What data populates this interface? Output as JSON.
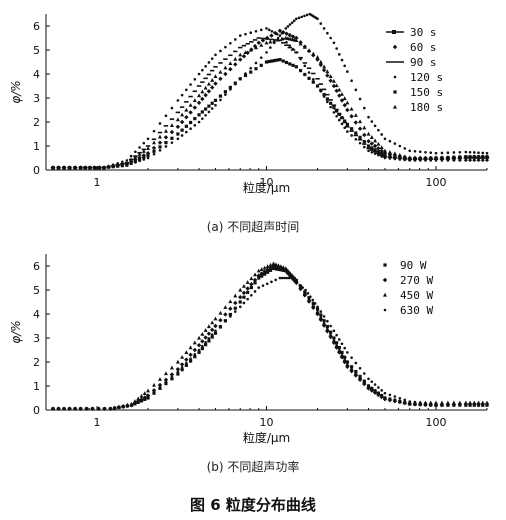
{
  "figure": {
    "title": "图 6 粒度分布曲线"
  },
  "chart_data": [
    {
      "type": "scatter",
      "caption": "(a) 不同超声时间",
      "xlabel": "粒度/μm",
      "ylabel": "φ/%",
      "xscale": "log",
      "xlim": [
        0.5,
        200
      ],
      "ylim": [
        0,
        6.5
      ],
      "xticks": [
        {
          "v": 1,
          "label": "1"
        },
        {
          "v": 10,
          "label": "10"
        },
        {
          "v": 100,
          "label": "100"
        }
      ],
      "yticks": [
        0,
        1,
        2,
        3,
        4,
        5,
        6
      ],
      "legend_position": "top-right",
      "series": [
        {
          "name": "30 s",
          "marker": "dash",
          "points": [
            [
              0.55,
              0.1
            ],
            [
              0.8,
              0.1
            ],
            [
              1.1,
              0.1
            ],
            [
              1.5,
              0.3
            ],
            [
              2,
              1
            ],
            [
              3,
              2.4
            ],
            [
              4,
              3.5
            ],
            [
              5,
              4.3
            ],
            [
              7,
              5.1
            ],
            [
              9,
              5.5
            ],
            [
              12,
              5.4
            ],
            [
              15,
              4.9
            ],
            [
              20,
              3.8
            ],
            [
              25,
              2.7
            ],
            [
              30,
              1.8
            ],
            [
              40,
              0.9
            ],
            [
              50,
              0.55
            ],
            [
              70,
              0.45
            ],
            [
              100,
              0.45
            ],
            [
              150,
              0.5
            ],
            [
              200,
              0.5
            ]
          ]
        },
        {
          "name": "60 s",
          "marker": "diamond",
          "points": [
            [
              0.55,
              0.1
            ],
            [
              0.8,
              0.1
            ],
            [
              1.1,
              0.1
            ],
            [
              1.5,
              0.25
            ],
            [
              2,
              0.7
            ],
            [
              3,
              1.8
            ],
            [
              4,
              2.8
            ],
            [
              5,
              3.6
            ],
            [
              7,
              4.6
            ],
            [
              9,
              5.3
            ],
            [
              12,
              5.8
            ],
            [
              15,
              5.5
            ],
            [
              20,
              4.6
            ],
            [
              25,
              3.5
            ],
            [
              30,
              2.5
            ],
            [
              40,
              1.2
            ],
            [
              50,
              0.7
            ],
            [
              70,
              0.5
            ],
            [
              100,
              0.5
            ],
            [
              150,
              0.55
            ],
            [
              200,
              0.55
            ]
          ]
        },
        {
          "name": "90 s",
          "marker": "line",
          "points": [
            [
              0.55,
              0.1
            ],
            [
              0.8,
              0.1
            ],
            [
              1.1,
              0.1
            ],
            [
              1.5,
              0.4
            ],
            [
              2,
              1.3
            ],
            [
              3,
              2.9
            ],
            [
              4,
              4.0
            ],
            [
              5,
              4.8
            ],
            [
              7,
              5.6
            ],
            [
              10,
              5.9
            ],
            [
              12,
              5.6
            ],
            [
              15,
              4.9
            ],
            [
              20,
              3.5
            ],
            [
              25,
              2.4
            ],
            [
              30,
              1.6
            ],
            [
              40,
              0.8
            ],
            [
              50,
              0.5
            ],
            [
              70,
              0.4
            ],
            [
              100,
              0.4
            ],
            [
              150,
              0.4
            ],
            [
              200,
              0.4
            ]
          ]
        },
        {
          "name": "120 s",
          "marker": "dot",
          "points": [
            [
              0.55,
              0.1
            ],
            [
              0.8,
              0.1
            ],
            [
              1.1,
              0.1
            ],
            [
              1.5,
              0.2
            ],
            [
              2,
              0.5
            ],
            [
              3,
              1.3
            ],
            [
              4,
              2.0
            ],
            [
              5,
              2.7
            ],
            [
              7,
              3.8
            ],
            [
              10,
              4.9
            ],
            [
              13,
              5.9
            ],
            [
              15,
              6.3
            ],
            [
              18,
              6.5
            ],
            [
              20,
              6.3
            ],
            [
              25,
              5.3
            ],
            [
              30,
              4.1
            ],
            [
              40,
              2.2
            ],
            [
              50,
              1.3
            ],
            [
              70,
              0.8
            ],
            [
              100,
              0.7
            ],
            [
              150,
              0.75
            ],
            [
              200,
              0.7
            ]
          ]
        },
        {
          "name": "150 s",
          "marker": "square",
          "points": [
            [
              0.55,
              0.1
            ],
            [
              0.8,
              0.1
            ],
            [
              1.1,
              0.1
            ],
            [
              1.5,
              0.2
            ],
            [
              2,
              0.6
            ],
            [
              3,
              1.5
            ],
            [
              4,
              2.3
            ],
            [
              5,
              2.9
            ],
            [
              7,
              3.8
            ],
            [
              10,
              4.5
            ],
            [
              12,
              4.6
            ],
            [
              15,
              4.3
            ],
            [
              20,
              3.5
            ],
            [
              25,
              2.6
            ],
            [
              30,
              1.9
            ],
            [
              40,
              1.0
            ],
            [
              50,
              0.6
            ],
            [
              70,
              0.45
            ],
            [
              100,
              0.5
            ],
            [
              150,
              0.55
            ],
            [
              200,
              0.55
            ]
          ]
        },
        {
          "name": "180 s",
          "marker": "triangle",
          "points": [
            [
              0.55,
              0.1
            ],
            [
              0.8,
              0.1
            ],
            [
              1.1,
              0.1
            ],
            [
              1.5,
              0.3
            ],
            [
              2,
              0.9
            ],
            [
              3,
              2.1
            ],
            [
              4,
              3.1
            ],
            [
              5,
              3.9
            ],
            [
              7,
              4.8
            ],
            [
              10,
              5.3
            ],
            [
              13,
              5.5
            ],
            [
              15,
              5.4
            ],
            [
              20,
              4.7
            ],
            [
              25,
              3.7
            ],
            [
              30,
              2.8
            ],
            [
              40,
              1.5
            ],
            [
              50,
              0.8
            ],
            [
              70,
              0.5
            ],
            [
              100,
              0.5
            ],
            [
              150,
              0.45
            ],
            [
              200,
              0.45
            ]
          ]
        }
      ]
    },
    {
      "type": "scatter",
      "caption": "(b) 不同超声功率",
      "xlabel": "粒度/μm",
      "ylabel": "φ/%",
      "xscale": "log",
      "xlim": [
        0.5,
        200
      ],
      "ylim": [
        0,
        6.5
      ],
      "xticks": [
        {
          "v": 1,
          "label": "1"
        },
        {
          "v": 10,
          "label": "10"
        },
        {
          "v": 100,
          "label": "100"
        }
      ],
      "yticks": [
        0,
        1,
        2,
        3,
        4,
        5,
        6
      ],
      "legend_position": "top-right",
      "series": [
        {
          "name": "90 W",
          "marker": "square",
          "points": [
            [
              0.55,
              0.05
            ],
            [
              0.8,
              0.05
            ],
            [
              1.2,
              0.05
            ],
            [
              1.6,
              0.2
            ],
            [
              2,
              0.5
            ],
            [
              3,
              1.5
            ],
            [
              4,
              2.4
            ],
            [
              5,
              3.2
            ],
            [
              7,
              4.5
            ],
            [
              9,
              5.5
            ],
            [
              11,
              5.9
            ],
            [
              13,
              5.8
            ],
            [
              15,
              5.4
            ],
            [
              20,
              4.2
            ],
            [
              25,
              3.0
            ],
            [
              30,
              2.0
            ],
            [
              40,
              1.0
            ],
            [
              50,
              0.5
            ],
            [
              70,
              0.25
            ],
            [
              100,
              0.2
            ],
            [
              150,
              0.2
            ],
            [
              200,
              0.2
            ]
          ]
        },
        {
          "name": "270 W",
          "marker": "diamond",
          "points": [
            [
              0.55,
              0.05
            ],
            [
              0.8,
              0.05
            ],
            [
              1.2,
              0.05
            ],
            [
              1.6,
              0.2
            ],
            [
              2,
              0.6
            ],
            [
              3,
              1.7
            ],
            [
              4,
              2.7
            ],
            [
              5,
              3.5
            ],
            [
              7,
              4.7
            ],
            [
              9,
              5.6
            ],
            [
              11,
              6.0
            ],
            [
              13,
              5.8
            ],
            [
              15,
              5.3
            ],
            [
              20,
              4.0
            ],
            [
              25,
              2.8
            ],
            [
              30,
              1.8
            ],
            [
              40,
              0.9
            ],
            [
              50,
              0.45
            ],
            [
              70,
              0.25
            ],
            [
              100,
              0.2
            ],
            [
              150,
              0.25
            ],
            [
              200,
              0.25
            ]
          ]
        },
        {
          "name": "450 W",
          "marker": "triangle",
          "points": [
            [
              0.55,
              0.05
            ],
            [
              0.8,
              0.05
            ],
            [
              1.2,
              0.05
            ],
            [
              1.6,
              0.25
            ],
            [
              2,
              0.8
            ],
            [
              3,
              2.0
            ],
            [
              4,
              3.0
            ],
            [
              5,
              3.8
            ],
            [
              7,
              5.0
            ],
            [
              9,
              5.8
            ],
            [
              11,
              6.1
            ],
            [
              13,
              5.9
            ],
            [
              15,
              5.4
            ],
            [
              20,
              4.1
            ],
            [
              25,
              2.9
            ],
            [
              30,
              1.9
            ],
            [
              40,
              1.0
            ],
            [
              50,
              0.5
            ],
            [
              70,
              0.3
            ],
            [
              100,
              0.3
            ],
            [
              150,
              0.3
            ],
            [
              200,
              0.3
            ]
          ]
        },
        {
          "name": "630 W",
          "marker": "dot",
          "points": [
            [
              0.55,
              0.05
            ],
            [
              0.8,
              0.05
            ],
            [
              1.2,
              0.05
            ],
            [
              1.6,
              0.2
            ],
            [
              2,
              0.6
            ],
            [
              3,
              1.6
            ],
            [
              4,
              2.5
            ],
            [
              5,
              3.3
            ],
            [
              7,
              4.3
            ],
            [
              9,
              5.1
            ],
            [
              12,
              5.5
            ],
            [
              14,
              5.5
            ],
            [
              17,
              5.0
            ],
            [
              20,
              4.3
            ],
            [
              25,
              3.3
            ],
            [
              30,
              2.4
            ],
            [
              40,
              1.3
            ],
            [
              50,
              0.7
            ],
            [
              70,
              0.35
            ],
            [
              100,
              0.25
            ],
            [
              150,
              0.25
            ],
            [
              200,
              0.25
            ]
          ]
        }
      ]
    }
  ]
}
